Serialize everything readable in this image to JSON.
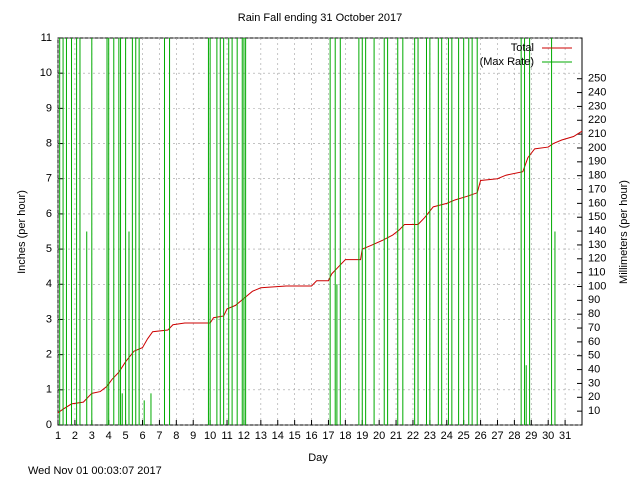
{
  "chart_data": {
    "type": "line",
    "title": "Rain Fall ending 31 October 2017",
    "x_label": "Day",
    "y_label": "Inches (per hour)",
    "y2_label": "Millimeters (per hour)",
    "footer": "Wed Nov 01 00:03:07 2017",
    "xlim": [
      1,
      32
    ],
    "xticks": [
      1,
      2,
      3,
      4,
      5,
      6,
      7,
      8,
      9,
      10,
      11,
      12,
      13,
      14,
      15,
      16,
      17,
      18,
      19,
      20,
      21,
      22,
      23,
      24,
      25,
      26,
      27,
      28,
      29,
      30,
      31
    ],
    "ylim": [
      0,
      11
    ],
    "yticks": [
      0,
      1,
      2,
      3,
      4,
      5,
      6,
      7,
      8,
      9,
      10,
      11
    ],
    "y2lim": [
      0,
      279.4
    ],
    "y2ticks": [
      10,
      20,
      30,
      40,
      50,
      60,
      70,
      80,
      90,
      100,
      110,
      120,
      130,
      140,
      150,
      160,
      170,
      180,
      190,
      200,
      210,
      220,
      230,
      240,
      250
    ],
    "grid": true,
    "legend": "top-right",
    "series": [
      {
        "name": "Total",
        "color": "#cc0000",
        "style": "steps",
        "x": [
          1,
          1.3,
          1.8,
          2.5,
          3,
          3.5,
          3.9,
          4.2,
          4.6,
          5,
          5.5,
          6,
          6.3,
          6.6,
          7.5,
          7.8,
          8.5,
          10,
          10.2,
          10.8,
          11,
          11.5,
          12,
          12.5,
          13,
          14.5,
          16,
          16.3,
          17,
          17.2,
          17.6,
          18,
          18.9,
          19,
          19.5,
          20.2,
          20.8,
          21.2,
          21.5,
          22.3,
          22.7,
          23.2,
          24,
          24.5,
          25.2,
          25.8,
          26,
          27,
          27.5,
          28.5,
          28.8,
          29.2,
          30,
          30.3,
          30.8,
          31.5,
          32
        ],
        "values": [
          0.35,
          0.45,
          0.6,
          0.65,
          0.9,
          0.95,
          1.1,
          1.3,
          1.5,
          1.8,
          2.1,
          2.2,
          2.45,
          2.65,
          2.7,
          2.85,
          2.9,
          2.9,
          3.05,
          3.1,
          3.3,
          3.4,
          3.6,
          3.8,
          3.9,
          3.95,
          3.95,
          4.1,
          4.1,
          4.3,
          4.5,
          4.7,
          4.7,
          5.0,
          5.1,
          5.25,
          5.4,
          5.55,
          5.7,
          5.7,
          5.9,
          6.2,
          6.3,
          6.4,
          6.5,
          6.6,
          6.95,
          7.0,
          7.1,
          7.2,
          7.6,
          7.85,
          7.9,
          8.0,
          8.1,
          8.2,
          8.35
        ]
      },
      {
        "name": "(Max Rate)",
        "color": "#00aa00",
        "style": "impulses",
        "x": [
          1.1,
          1.3,
          1.5,
          1.8,
          2.1,
          2.3,
          2.7,
          3.0,
          3.9,
          4.0,
          4.3,
          4.6,
          4.7,
          4.8,
          5.0,
          5.2,
          5.4,
          5.6,
          5.8,
          6.1,
          6.5,
          7.3,
          7.6,
          9.9,
          10.0,
          10.4,
          10.6,
          10.8,
          11.1,
          11.3,
          11.6,
          11.9,
          12.0,
          12.1,
          17.1,
          17.4,
          17.5,
          17.7,
          18.8,
          19.0,
          19.2,
          19.7,
          20.3,
          20.5,
          21.1,
          21.4,
          22.1,
          22.3,
          22.8,
          23.0,
          23.5,
          23.7,
          24.1,
          24.3,
          24.7,
          25.0,
          25.3,
          25.5,
          25.8,
          28.4,
          28.6,
          28.7,
          28.9,
          30.2,
          30.4
        ],
        "values": [
          11,
          11,
          11,
          11,
          11,
          11,
          5.5,
          11,
          11,
          11,
          11,
          11,
          11,
          0.9,
          11,
          5.5,
          11,
          11,
          11,
          0.7,
          0.9,
          11,
          11,
          11,
          11,
          11,
          11,
          11,
          11,
          11,
          11,
          11,
          11,
          11,
          11,
          11,
          4,
          11,
          11,
          11,
          11,
          11,
          11,
          11,
          11,
          11,
          11,
          11,
          11,
          11,
          11,
          11,
          11,
          11,
          11,
          11,
          11,
          11,
          11,
          11,
          11,
          1.7,
          11,
          11,
          5.5
        ]
      }
    ]
  }
}
